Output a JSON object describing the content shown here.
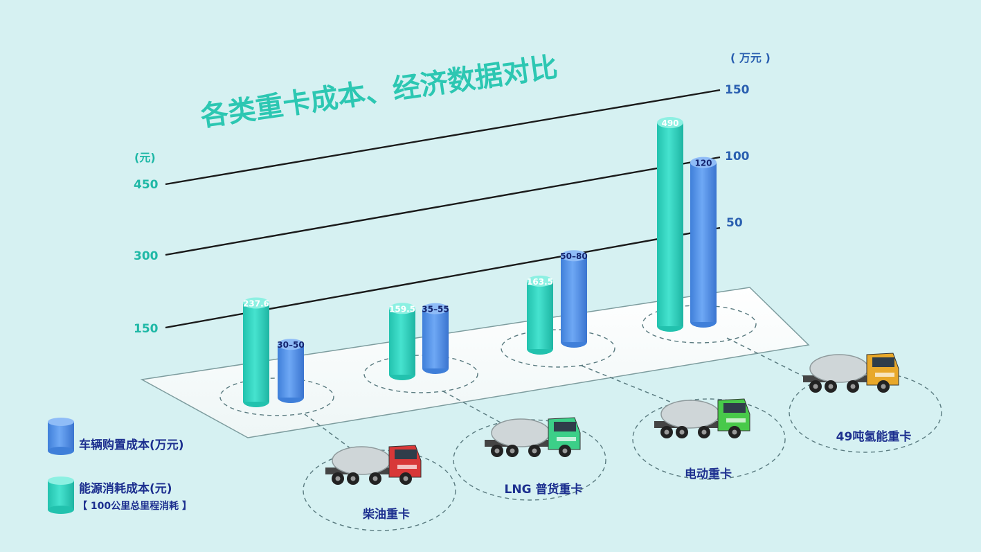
{
  "colors": {
    "background": "#d6f1f2",
    "energy": "#3bd8c6",
    "purchase": "#5b98ec",
    "title": "#2cc7b2",
    "left_axis": "#1fb8a6",
    "right_axis": "#2a5fb0",
    "category_text": "#1c2f8f"
  },
  "title": "各类重卡成本、经济数据对比",
  "left_axis": {
    "unit": "(元)",
    "ticks": [
      "150",
      "300",
      "450"
    ]
  },
  "right_axis": {
    "unit": "( 万元 )",
    "ticks": [
      "50",
      "100",
      "150"
    ]
  },
  "legend": {
    "purchase": "车辆购置成本(万元)",
    "energy": "能源消耗成本(元)",
    "energy_note": "【 100公里总里程消耗 】"
  },
  "chart_data": {
    "type": "bar",
    "title": "各类重卡成本、经济数据对比",
    "categories": [
      "柴油重卡",
      "LNG 普货重卡",
      "电动重卡",
      "49吨氢能重卡"
    ],
    "series": [
      {
        "name": "能源消耗成本(元)",
        "axis": "left",
        "values": [
          237.6,
          159.5,
          163.5,
          490
        ],
        "labels": [
          "237.6",
          "159.5",
          "163.5",
          "490"
        ]
      },
      {
        "name": "车辆购置成本(万元)",
        "axis": "right",
        "values": [
          40,
          45,
          65,
          120
        ],
        "labels": [
          "30–50",
          "35–55",
          "50–80",
          "120"
        ]
      }
    ],
    "left_axis_ticks": [
      150,
      300,
      450
    ],
    "right_axis_ticks": [
      50,
      100,
      150
    ],
    "legend_position": "bottom-left",
    "style": "3d-cylinder"
  }
}
